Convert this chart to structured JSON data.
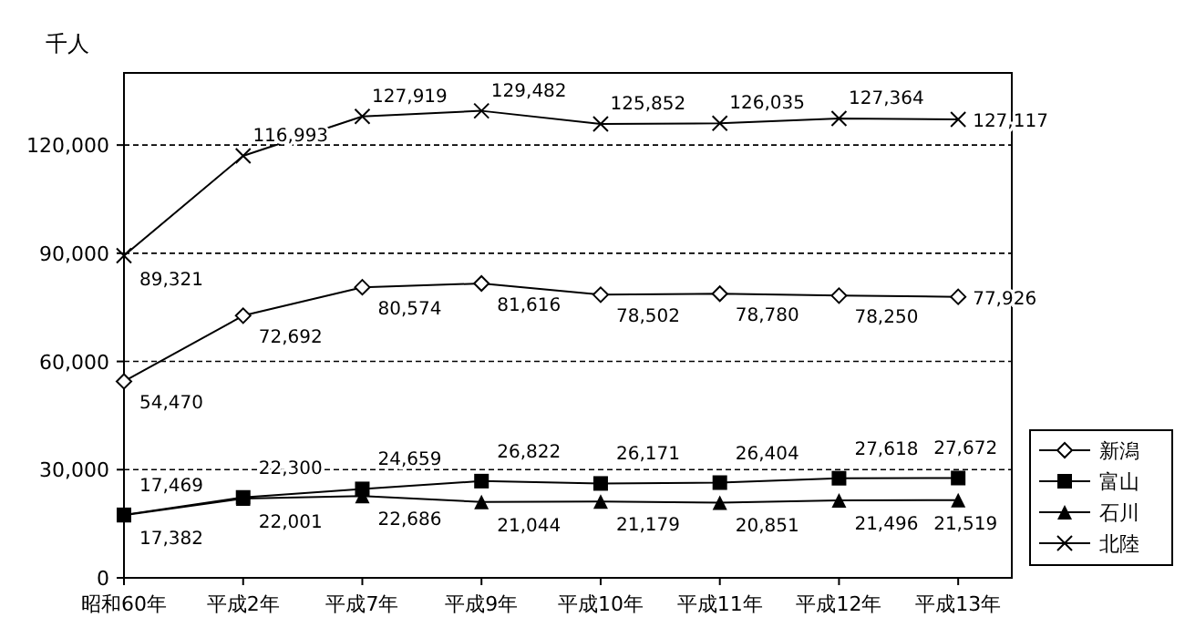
{
  "chart_data": {
    "type": "line",
    "ylabel": "千人",
    "categories": [
      "昭和60年",
      "平成2年",
      "平成7年",
      "平成9年",
      "平成10年",
      "平成11年",
      "平成12年",
      "平成13年"
    ],
    "series": [
      {
        "name": "新潟",
        "color": "#000000",
        "marker": "diamond",
        "values": [
          54470,
          72692,
          80574,
          81616,
          78502,
          78780,
          78250,
          77926
        ],
        "value_labels": [
          "54,470",
          "72,692",
          "80,574",
          "81,616",
          "78,502",
          "78,780",
          "78,250",
          "77,926"
        ]
      },
      {
        "name": "富山",
        "color": "#000000",
        "marker": "square",
        "values": [
          17469,
          22300,
          24659,
          26822,
          26171,
          26404,
          27618,
          27672
        ],
        "value_labels": [
          "17,469",
          "22,300",
          "24,659",
          "26,822",
          "26,171",
          "26,404",
          "27,618",
          "27,672"
        ]
      },
      {
        "name": "石川",
        "color": "#000000",
        "marker": "triangle",
        "values": [
          17382,
          22001,
          22686,
          21044,
          21179,
          20851,
          21496,
          21519
        ],
        "value_labels": [
          "17,382",
          "22,001",
          "22,686",
          "21,044",
          "21,179",
          "20,851",
          "21,496",
          "21,519"
        ]
      },
      {
        "name": "北陸",
        "color": "#000000",
        "marker": "cross",
        "values": [
          89321,
          116993,
          127919,
          129482,
          125852,
          126035,
          127364,
          127117
        ],
        "value_labels": [
          "89,321",
          "116,993",
          "127,919",
          "129,482",
          "125,852",
          "126,035",
          "127,364",
          "127,117"
        ]
      }
    ],
    "ylim": [
      0,
      140000
    ],
    "yticks": [
      0,
      {
        "value": 30000,
        "label": "30,000"
      },
      {
        "value": 60000,
        "label": "60,000"
      },
      {
        "value": 90000,
        "label": "90,000"
      },
      {
        "value": 120000,
        "label": "120,000"
      }
    ],
    "grid": "y",
    "legend": "right"
  }
}
